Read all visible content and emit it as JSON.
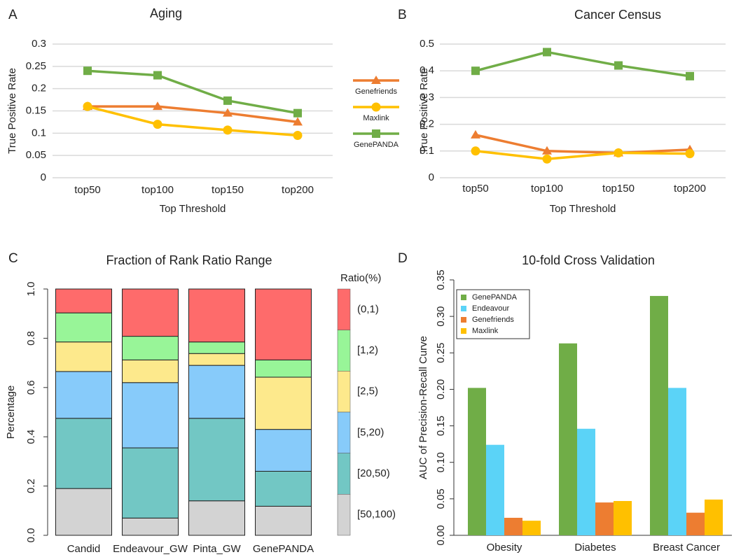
{
  "chart_data": [
    {
      "panel": "A",
      "type": "line",
      "title": "Aging",
      "x_label": "Top Threshold",
      "y_label": "True Positive Rate",
      "categories": [
        "top50",
        "top100",
        "top150",
        "top200"
      ],
      "ylim": [
        0,
        0.3
      ],
      "yticks": [
        0,
        0.05,
        0.1,
        0.15,
        0.2,
        0.25,
        0.3
      ],
      "grid": true,
      "legend": "right",
      "series": [
        {
          "name": "Genefriends",
          "color": "#ed7d31",
          "marker": "triangle",
          "values": [
            0.16,
            0.16,
            0.145,
            0.125
          ]
        },
        {
          "name": "Maxlink",
          "color": "#ffc000",
          "marker": "circle",
          "values": [
            0.16,
            0.12,
            0.107,
            0.095
          ]
        },
        {
          "name": "GenePANDA",
          "color": "#70ad47",
          "marker": "square",
          "values": [
            0.24,
            0.23,
            0.173,
            0.145
          ]
        }
      ]
    },
    {
      "panel": "B",
      "type": "line",
      "title": "Cancer Census",
      "x_label": "Top Threshold",
      "y_label": "True Positive Rate",
      "categories": [
        "top50",
        "top100",
        "top150",
        "top200"
      ],
      "ylim": [
        0,
        0.5
      ],
      "yticks": [
        0,
        0.1,
        0.2,
        0.3,
        0.4,
        0.5
      ],
      "grid": true,
      "series": [
        {
          "color": "#70ad47",
          "marker": "square",
          "values": [
            0.4,
            0.47,
            0.42,
            0.38
          ]
        },
        {
          "color": "#ed7d31",
          "marker": "triangle",
          "values": [
            0.16,
            0.1,
            0.093,
            0.105
          ]
        },
        {
          "color": "#ffc000",
          "marker": "circle",
          "values": [
            0.1,
            0.07,
            0.093,
            0.09
          ]
        }
      ]
    },
    {
      "panel": "C",
      "type": "bar",
      "stacked": true,
      "title": "Fraction of Rank Ratio Range",
      "y_label": "Percentage",
      "categories": [
        "Candid",
        "Endeavour_GW",
        "Pinta_GW",
        "GenePANDA"
      ],
      "ylim": [
        0,
        1
      ],
      "yticks": [
        {
          "value": 0,
          "label": "0.0"
        },
        {
          "value": 0.2,
          "label": "0.2"
        },
        {
          "value": 0.4,
          "label": "0.4"
        },
        {
          "value": 0.6,
          "label": "0.6"
        },
        {
          "value": 0.8,
          "label": "0.8"
        },
        {
          "value": 1,
          "label": "1.0"
        }
      ],
      "grid": false,
      "legend": "right",
      "legend_title": "Ratio(%)",
      "series": [
        {
          "name": "[50,100)",
          "color": "#d3d3d3",
          "values": [
            0.19,
            0.07,
            0.14,
            0.118
          ]
        },
        {
          "name": "[20,50)",
          "color": "#72c7c4",
          "values": [
            0.285,
            0.285,
            0.335,
            0.142
          ]
        },
        {
          "name": "[5,20)",
          "color": "#87cbfa",
          "values": [
            0.19,
            0.265,
            0.215,
            0.17
          ]
        },
        {
          "name": "[2,5)",
          "color": "#fde98c",
          "values": [
            0.12,
            0.092,
            0.048,
            0.212
          ]
        },
        {
          "name": "[1,2)",
          "color": "#98f598",
          "values": [
            0.118,
            0.096,
            0.047,
            0.07
          ]
        },
        {
          "name": "(0,1)",
          "color": "#fe6b6b",
          "values": [
            0.097,
            0.192,
            0.215,
            0.288
          ]
        }
      ]
    },
    {
      "panel": "D",
      "type": "bar",
      "stacked": false,
      "title": "10-fold Cross Validation",
      "y_label": "AUC of Precision-Recall Curve",
      "categories": [
        "Obesity",
        "Diabetes",
        "Breast Cancer"
      ],
      "ylim": [
        0,
        0.35
      ],
      "yticks": [
        {
          "value": 0,
          "label": "0.00"
        },
        {
          "value": 0.05,
          "label": "0.05"
        },
        {
          "value": 0.1,
          "label": "0.10"
        },
        {
          "value": 0.15,
          "label": "0.15"
        },
        {
          "value": 0.2,
          "label": "0.20"
        },
        {
          "value": 0.25,
          "label": "0.25"
        },
        {
          "value": 0.3,
          "label": "0.30"
        },
        {
          "value": 0.35,
          "label": "0.35"
        }
      ],
      "grid": false,
      "legend": "upper left",
      "series": [
        {
          "name": "GenePANDA",
          "color": "#70ad47",
          "values": [
            0.202,
            0.263,
            0.328
          ]
        },
        {
          "name": "Endeavour",
          "color": "#5bd3f7",
          "values": [
            0.124,
            0.146,
            0.202
          ]
        },
        {
          "name": "Genefriends",
          "color": "#ed7d31",
          "values": [
            0.024,
            0.045,
            0.031
          ]
        },
        {
          "name": "Maxlink",
          "color": "#ffc000",
          "values": [
            0.02,
            0.047,
            0.049
          ]
        }
      ]
    }
  ]
}
